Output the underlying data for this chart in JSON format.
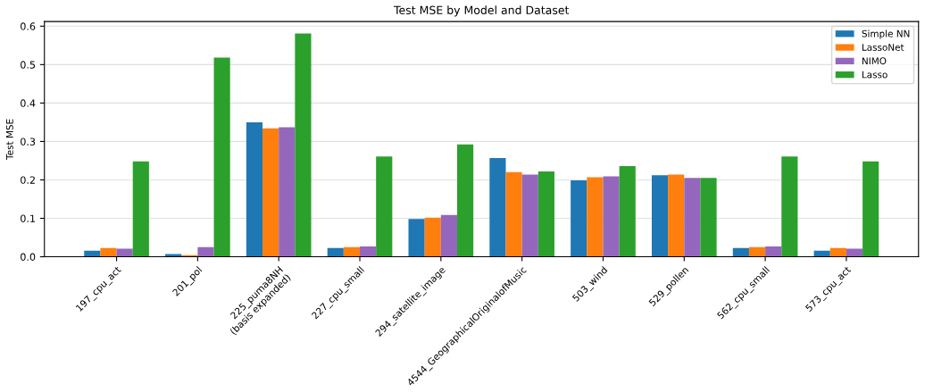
{
  "chart_data": {
    "type": "bar",
    "title": "Test MSE by Model and Dataset",
    "ylabel": "Test MSE",
    "categories": [
      "197_cpu_act",
      "201_pol",
      "225_puma8NH\n(basis expanded)",
      "227_cpu_small",
      "294_satellite_image",
      "4544_GeographicalOriginalofMusic",
      "503_wind",
      "529_pollen",
      "562_cpu_small",
      "573_cpu_act"
    ],
    "series": [
      {
        "name": "Simple NN",
        "color": "#1f77b4",
        "values": [
          0.016,
          0.007,
          0.35,
          0.023,
          0.098,
          0.257,
          0.199,
          0.212,
          0.023,
          0.016
        ]
      },
      {
        "name": "LassoNet",
        "color": "#ff7f0e",
        "values": [
          0.023,
          0.004,
          0.334,
          0.025,
          0.102,
          0.22,
          0.207,
          0.214,
          0.025,
          0.023
        ]
      },
      {
        "name": "NIMO",
        "color": "#9467bd",
        "values": [
          0.021,
          0.025,
          0.337,
          0.027,
          0.109,
          0.214,
          0.209,
          0.205,
          0.027,
          0.021
        ]
      },
      {
        "name": "Lasso",
        "color": "#2ca02c",
        "values": [
          0.248,
          0.518,
          0.581,
          0.261,
          0.292,
          0.222,
          0.236,
          0.205,
          0.261,
          0.248
        ]
      }
    ],
    "ylim": [
      0,
      0.612
    ],
    "yticks": [
      {
        "value": 0,
        "label": "0.0"
      },
      0.1,
      0.2,
      0.3,
      0.4,
      0.5,
      0.6
    ],
    "grid": "y",
    "legend": "top right"
  }
}
